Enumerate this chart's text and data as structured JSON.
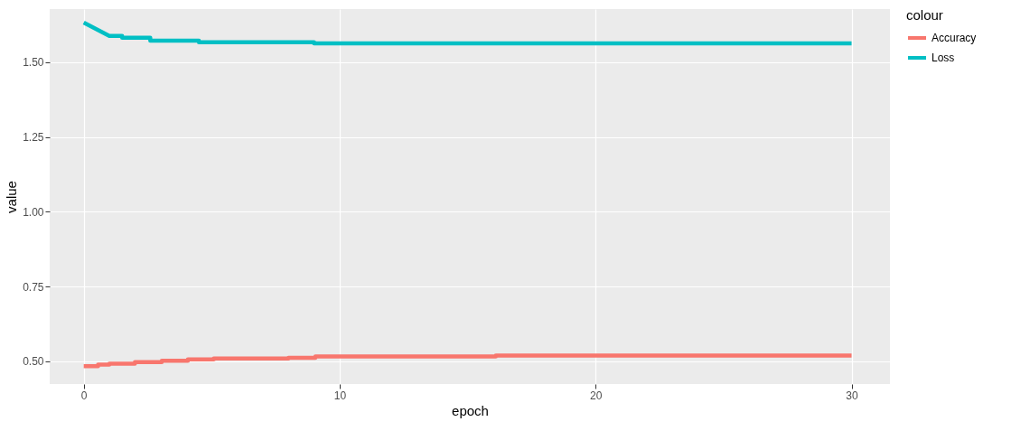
{
  "chart_data": {
    "type": "line",
    "xlabel": "epoch",
    "ylabel": "value",
    "legend_title": "colour",
    "xlim": [
      -1.33,
      31.5
    ],
    "ylim": [
      0.424,
      1.678
    ],
    "xticks": [
      0,
      10,
      20,
      30
    ],
    "yticks": [
      {
        "value": 0.5,
        "label": "0.50"
      },
      {
        "value": 0.75,
        "label": "0.75"
      },
      {
        "value": 1,
        "label": "1.00"
      },
      {
        "value": 1.25,
        "label": "1.25"
      },
      {
        "value": 1.5,
        "label": "1.50"
      }
    ],
    "grid": true,
    "legend": "right",
    "series": [
      {
        "name": "Accuracy",
        "color": "#f8766d",
        "x": [
          0,
          0.56,
          0.56,
          1,
          1,
          2,
          2,
          3.05,
          3.05,
          4.07,
          4.07,
          5.08,
          5.08,
          8,
          8,
          9.05,
          9.05,
          16.1,
          16.1,
          30
        ],
        "values": [
          0.484,
          0.484,
          0.489,
          0.489,
          0.492,
          0.492,
          0.497,
          0.497,
          0.502,
          0.502,
          0.506,
          0.506,
          0.509,
          0.509,
          0.512,
          0.512,
          0.516,
          0.516,
          0.519,
          0.519
        ]
      },
      {
        "name": "Loss",
        "color": "#00bfc4",
        "x": [
          0,
          1,
          1.5,
          1.5,
          2.6,
          2.6,
          4.5,
          4.5,
          9,
          9,
          30
        ],
        "values": [
          1.633,
          1.588,
          1.588,
          1.582,
          1.582,
          1.572,
          1.572,
          1.567,
          1.567,
          1.563,
          1.563
        ]
      }
    ]
  }
}
